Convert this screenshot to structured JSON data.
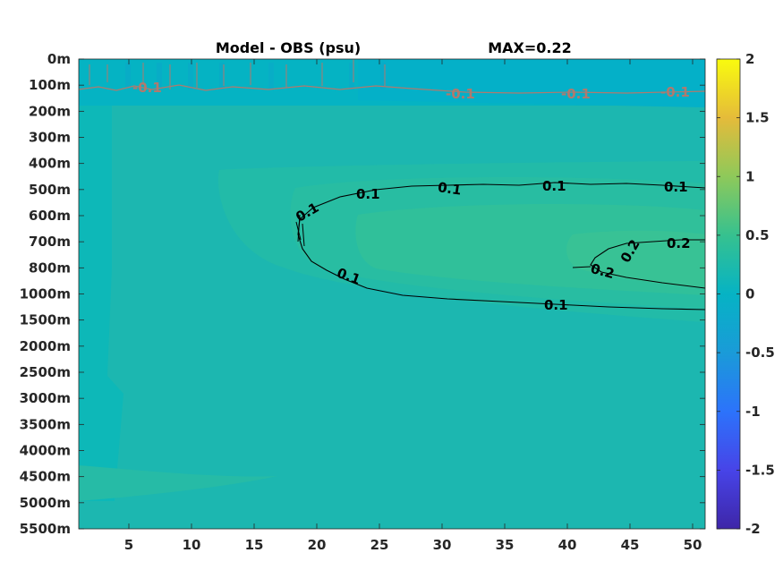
{
  "chart_data": {
    "type": "heatmap",
    "title": "Model - OBS (psu)",
    "title_right": "MAX=0.22",
    "x_ticks": [
      5,
      10,
      15,
      20,
      25,
      30,
      35,
      40,
      45,
      50
    ],
    "xlim": [
      1,
      51
    ],
    "y_tick_labels": [
      "0m",
      "100m",
      "200m",
      "300m",
      "400m",
      "500m",
      "600m",
      "700m",
      "800m",
      "1000m",
      "1500m",
      "2000m",
      "2500m",
      "3000m",
      "3500m",
      "4000m",
      "4500m",
      "5000m",
      "5500m"
    ],
    "colorbar": {
      "ticks": [
        2,
        1.5,
        1,
        0.5,
        0,
        -0.5,
        -1,
        -1.5,
        -2
      ],
      "limits": [
        -2,
        2
      ],
      "colormap": "parula"
    },
    "contours": [
      {
        "level": -0.1,
        "color": "#b07a6e",
        "labels": [
          "-0.1",
          "-0.1",
          "-0.1",
          "-0.1"
        ]
      },
      {
        "level": 0.1,
        "color": "#000000",
        "labels": [
          "0.1",
          "0.1",
          "0.1",
          "0.1",
          "0.1",
          "0.1",
          "0.1"
        ]
      },
      {
        "level": 0.2,
        "color": "#000000",
        "labels": [
          "0.2",
          "0.2",
          "0.2"
        ]
      }
    ],
    "field_summary": {
      "background_value": 0.02,
      "max_value": 0.22,
      "anomaly_core_depth": "700m-800m",
      "anomaly_core_x": [
        40,
        51
      ]
    }
  }
}
